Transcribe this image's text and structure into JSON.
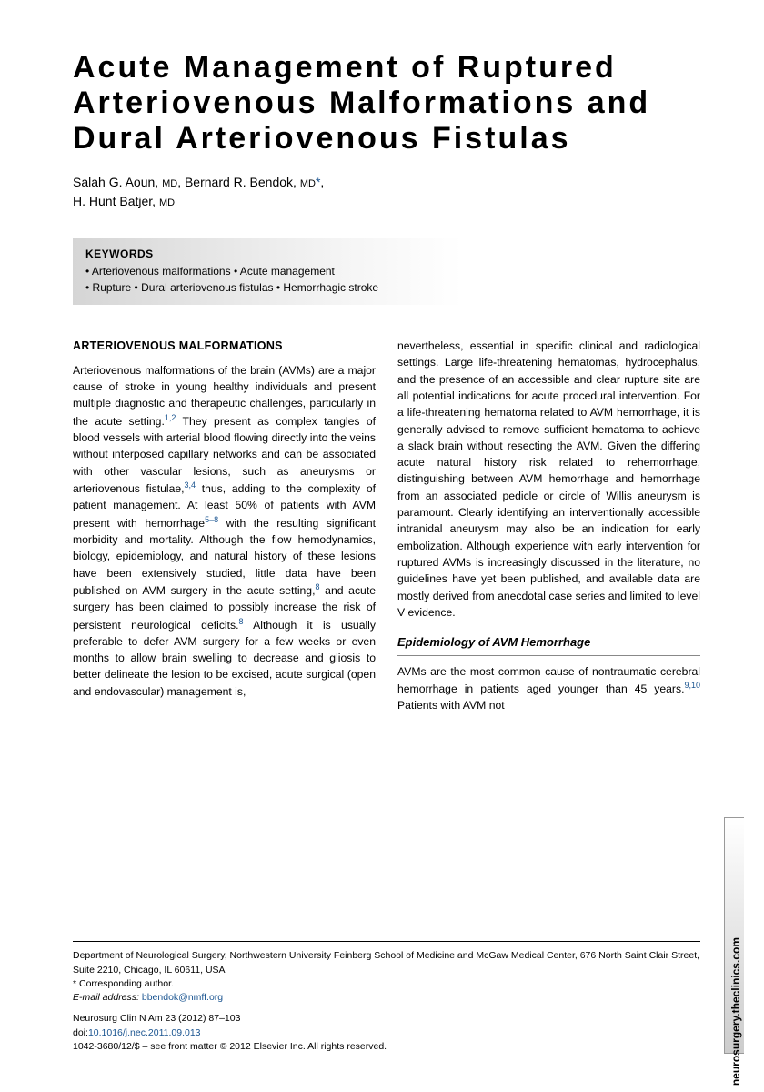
{
  "title": "Acute Management of Ruptured Arteriovenous Malformations and Dural Arteriovenous Fistulas",
  "authors": {
    "a1_name": "Salah G. Aoun",
    "a1_deg": "MD",
    "a2_name": "Bernard R. Bendok",
    "a2_deg": "MD",
    "a3_name": "H. Hunt Batjer",
    "a3_deg": "MD"
  },
  "keywords": {
    "heading": "KEYWORDS",
    "line1": "• Arteriovenous malformations • Acute management",
    "line2": "• Rupture • Dural arteriovenous fistulas • Hemorrhagic stroke"
  },
  "section1": {
    "heading": "ARTERIOVENOUS MALFORMATIONS",
    "p1a": "Arteriovenous malformations of the brain (AVMs) are a major cause of stroke in young healthy individuals and present multiple diagnostic and therapeutic challenges, particularly in the acute setting.",
    "p1b": " They present as complex tangles of blood vessels with arterial blood flowing directly into the veins without interposed capillary networks and can be associated with other vascular lesions, such as aneurysms or arteriovenous fistulae,",
    "p1c": " thus, adding to the complexity of patient management. At least 50% of patients with AVM present with hemorrhage",
    "p1d": " with the resulting significant morbidity and mortality. Although the flow hemodynamics, biology, epidemiology, and natural history of these lesions have been extensively studied, little data have been published on AVM surgery in the acute setting,",
    "p1e": " and acute surgery has been claimed to possibly increase the risk of persistent neurological deficits.",
    "p1f": " Although it is usually preferable to defer AVM surgery for a few weeks or even months to allow brain swelling to decrease and gliosis to better delineate the lesion to be excised, acute surgical (open and endovascular) management is,",
    "p2": "nevertheless, essential in specific clinical and radiological settings. Large life-threatening hematomas, hydrocephalus, and the presence of an accessible and clear rupture site are all potential indications for acute procedural intervention. For a life-threatening hematoma related to AVM hemorrhage, it is generally advised to remove sufficient hematoma to achieve a slack brain without resecting the AVM. Given the differing acute natural history risk related to rehemorrhage, distinguishing between AVM hemorrhage and hemorrhage from an associated pedicle or circle of Willis aneurysm is paramount. Clearly identifying an interventionally accessible intranidal aneurysm may also be an indication for early embolization. Although experience with early intervention for ruptured AVMs is increasingly discussed in the literature, no guidelines have yet been published, and available data are mostly derived from anecdotal case series and limited to level V evidence."
  },
  "section2": {
    "heading": "Epidemiology of AVM Hemorrhage",
    "p1a": "AVMs are the most common cause of nontraumatic cerebral hemorrhage in patients aged younger than 45 years.",
    "p1b": " Patients with AVM not"
  },
  "refs": {
    "r12": "1,2",
    "r34": "3,4",
    "r58": "5–8",
    "r8a": "8",
    "r8b": "8",
    "r910": "9,10"
  },
  "footer": {
    "affil": "Department of Neurological Surgery, Northwestern University Feinberg School of Medicine and McGaw Medical Center, 676 North Saint Clair Street, Suite 2210, Chicago, IL 60611, USA",
    "corr": "* Corresponding author.",
    "email_label": "E-mail address:",
    "email": "bbendok@nmff.org",
    "journal": "Neurosurg Clin N Am 23 (2012) 87–103",
    "doi_label": "doi:",
    "doi": "10.1016/j.nec.2011.09.013",
    "copyright": "1042-3680/12/$ – see front matter © 2012 Elsevier Inc. All rights reserved."
  },
  "sidetab": "neurosurgery.theclinics.com"
}
